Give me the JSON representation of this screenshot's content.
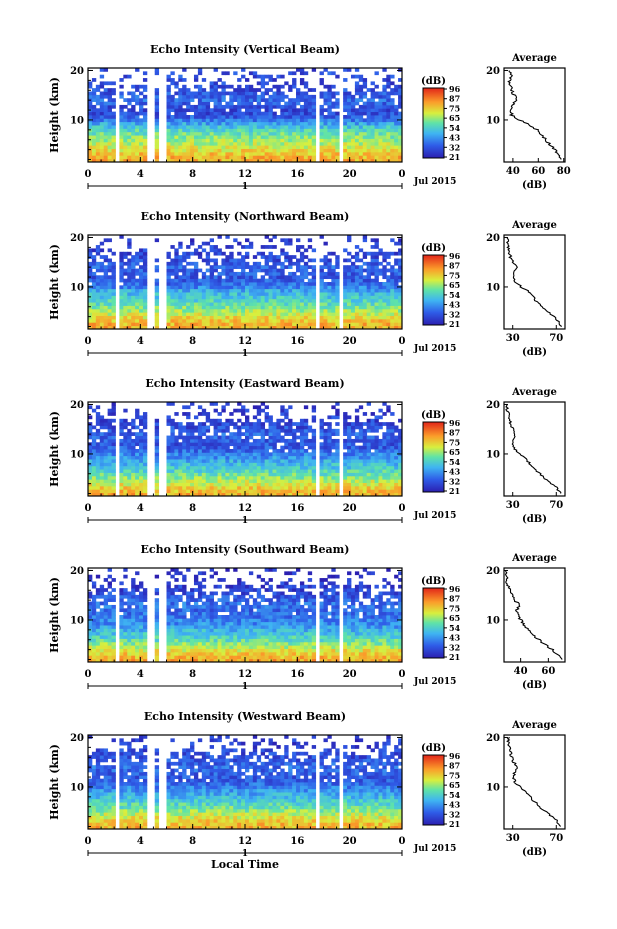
{
  "chart_data": [
    {
      "type": "heatmap",
      "title": "Echo Intensity (Vertical Beam)",
      "ylabel": "Height (km)",
      "x_ticks": [
        "0",
        "4",
        "8",
        "12",
        "16",
        "20",
        "0"
      ],
      "y_ticks": [
        "20",
        "10"
      ],
      "xlim": [
        0,
        24
      ],
      "ylim": [
        1.5,
        20.5
      ],
      "date_ruler": "1",
      "date_label": "Jul 2015",
      "colorbar": {
        "unit": "(dB)",
        "labels": [
          "96",
          "87",
          "75",
          "65",
          "54",
          "43",
          "32",
          "21"
        ]
      },
      "gaps_hours": [
        [
          2.2,
          2.5
        ],
        [
          4.4,
          5.1
        ],
        [
          5.5,
          5.9
        ],
        [
          17.5,
          17.8
        ],
        [
          19.2,
          19.6
        ]
      ],
      "profile": {
        "title": "Average",
        "xlabel": "(dB)",
        "x_ticks": [
          "40",
          "60",
          "80"
        ],
        "xlim": [
          33,
          81
        ],
        "y_ticks": [
          "20",
          "10"
        ],
        "height_km": [
          2,
          3,
          4,
          5,
          6,
          7,
          8,
          9,
          10,
          11,
          12,
          13,
          14,
          15,
          16,
          17,
          18,
          19,
          20
        ],
        "values_db": [
          78,
          76,
          73,
          69,
          66,
          63,
          59,
          53,
          45,
          39,
          38,
          40,
          43,
          41,
          39,
          38,
          37,
          39,
          38
        ]
      }
    },
    {
      "type": "heatmap",
      "title": "Echo Intensity (Northward Beam)",
      "ylabel": "Height (km)",
      "x_ticks": [
        "0",
        "4",
        "8",
        "12",
        "16",
        "20",
        "0"
      ],
      "y_ticks": [
        "20",
        "10"
      ],
      "xlim": [
        0,
        24
      ],
      "ylim": [
        1.5,
        20.5
      ],
      "date_ruler": "1",
      "date_label": "Jul 2015",
      "colorbar": {
        "unit": "(dB)",
        "labels": [
          "96",
          "87",
          "75",
          "65",
          "54",
          "43",
          "32",
          "21"
        ]
      },
      "gaps_hours": [
        [
          2.2,
          2.5
        ],
        [
          4.4,
          5.1
        ],
        [
          5.5,
          5.9
        ],
        [
          17.5,
          17.8
        ],
        [
          19.2,
          19.6
        ]
      ],
      "profile": {
        "title": "Average",
        "xlabel": "(dB)",
        "x_ticks": [
          "30",
          "70"
        ],
        "xlim": [
          22,
          78
        ],
        "y_ticks": [
          "20",
          "10"
        ],
        "height_km": [
          2,
          3,
          4,
          5,
          6,
          7,
          8,
          9,
          10,
          11,
          12,
          13,
          14,
          15,
          16,
          17,
          18,
          19,
          20
        ],
        "values_db": [
          75,
          72,
          68,
          62,
          57,
          52,
          49,
          45,
          38,
          32,
          31,
          31,
          33,
          30,
          28,
          27,
          26,
          25,
          25
        ]
      }
    },
    {
      "type": "heatmap",
      "title": "Echo Intensity (Eastward Beam)",
      "ylabel": "Height (km)",
      "x_ticks": [
        "0",
        "4",
        "8",
        "12",
        "16",
        "20",
        "0"
      ],
      "y_ticks": [
        "20",
        "10"
      ],
      "xlim": [
        0,
        24
      ],
      "ylim": [
        1.5,
        20.5
      ],
      "date_ruler": "1",
      "date_label": "Jul 2015",
      "colorbar": {
        "unit": "(dB)",
        "labels": [
          "96",
          "87",
          "75",
          "65",
          "54",
          "43",
          "32",
          "21"
        ]
      },
      "gaps_hours": [
        [
          2.2,
          2.5
        ],
        [
          4.4,
          5.1
        ],
        [
          5.5,
          5.9
        ],
        [
          17.5,
          17.8
        ],
        [
          19.2,
          19.6
        ]
      ],
      "profile": {
        "title": "Average",
        "xlabel": "(dB)",
        "x_ticks": [
          "30",
          "70"
        ],
        "xlim": [
          22,
          78
        ],
        "y_ticks": [
          "20",
          "10"
        ],
        "height_km": [
          2,
          3,
          4,
          5,
          6,
          7,
          8,
          9,
          10,
          11,
          12,
          13,
          14,
          15,
          16,
          17,
          18,
          19,
          20
        ],
        "values_db": [
          74,
          71,
          66,
          60,
          55,
          50,
          46,
          42,
          37,
          32,
          30,
          31,
          33,
          30,
          28,
          27,
          26,
          25,
          25
        ]
      }
    },
    {
      "type": "heatmap",
      "title": "Echo Intensity (Southward Beam)",
      "ylabel": "Height (km)",
      "x_ticks": [
        "0",
        "4",
        "8",
        "12",
        "16",
        "20",
        "0"
      ],
      "y_ticks": [
        "20",
        "10"
      ],
      "xlim": [
        0,
        24
      ],
      "ylim": [
        1.5,
        20.5
      ],
      "date_ruler": "1",
      "date_label": "Jul 2015",
      "colorbar": {
        "unit": "(dB)",
        "labels": [
          "96",
          "87",
          "75",
          "65",
          "54",
          "43",
          "32",
          "21"
        ]
      },
      "gaps_hours": [
        [
          2.2,
          2.5
        ],
        [
          4.4,
          5.1
        ],
        [
          5.5,
          5.9
        ],
        [
          17.5,
          17.8
        ],
        [
          19.2,
          19.6
        ]
      ],
      "profile": {
        "title": "Average",
        "xlabel": "(dB)",
        "x_ticks": [
          "40",
          "60"
        ],
        "xlim": [
          28,
          72
        ],
        "y_ticks": [
          "20",
          "10"
        ],
        "height_km": [
          2,
          3,
          4,
          5,
          6,
          7,
          8,
          9,
          10,
          11,
          12,
          13,
          14,
          15,
          16,
          17,
          18,
          19,
          20
        ],
        "values_db": [
          70,
          67,
          63,
          58,
          53,
          49,
          46,
          42,
          40,
          38,
          37,
          39,
          36,
          34,
          32,
          31,
          30,
          29,
          29
        ]
      }
    },
    {
      "type": "heatmap",
      "title": "Echo Intensity (Westward Beam)",
      "ylabel": "Height (km)",
      "x_ticks": [
        "0",
        "4",
        "8",
        "12",
        "16",
        "20",
        "0"
      ],
      "y_ticks": [
        "20",
        "10"
      ],
      "xlim": [
        0,
        24
      ],
      "ylim": [
        1.5,
        20.5
      ],
      "date_ruler": "1",
      "date_label": "Jul 2015",
      "xlabel": "Local Time",
      "colorbar": {
        "unit": "(dB)",
        "labels": [
          "96",
          "87",
          "75",
          "65",
          "54",
          "43",
          "32",
          "21"
        ]
      },
      "gaps_hours": [
        [
          2.2,
          2.5
        ],
        [
          4.4,
          5.1
        ],
        [
          5.5,
          5.9
        ],
        [
          17.5,
          17.8
        ],
        [
          19.2,
          19.6
        ]
      ],
      "profile": {
        "title": "Average",
        "xlabel": "(dB)",
        "x_ticks": [
          "30",
          "70"
        ],
        "xlim": [
          22,
          78
        ],
        "y_ticks": [
          "20",
          "10"
        ],
        "height_km": [
          2,
          3,
          4,
          5,
          6,
          7,
          8,
          9,
          10,
          11,
          12,
          13,
          14,
          15,
          16,
          17,
          18,
          19,
          20
        ],
        "values_db": [
          74,
          71,
          66,
          60,
          55,
          50,
          46,
          42,
          37,
          32,
          31,
          32,
          34,
          31,
          29,
          28,
          27,
          26,
          26
        ]
      }
    }
  ]
}
